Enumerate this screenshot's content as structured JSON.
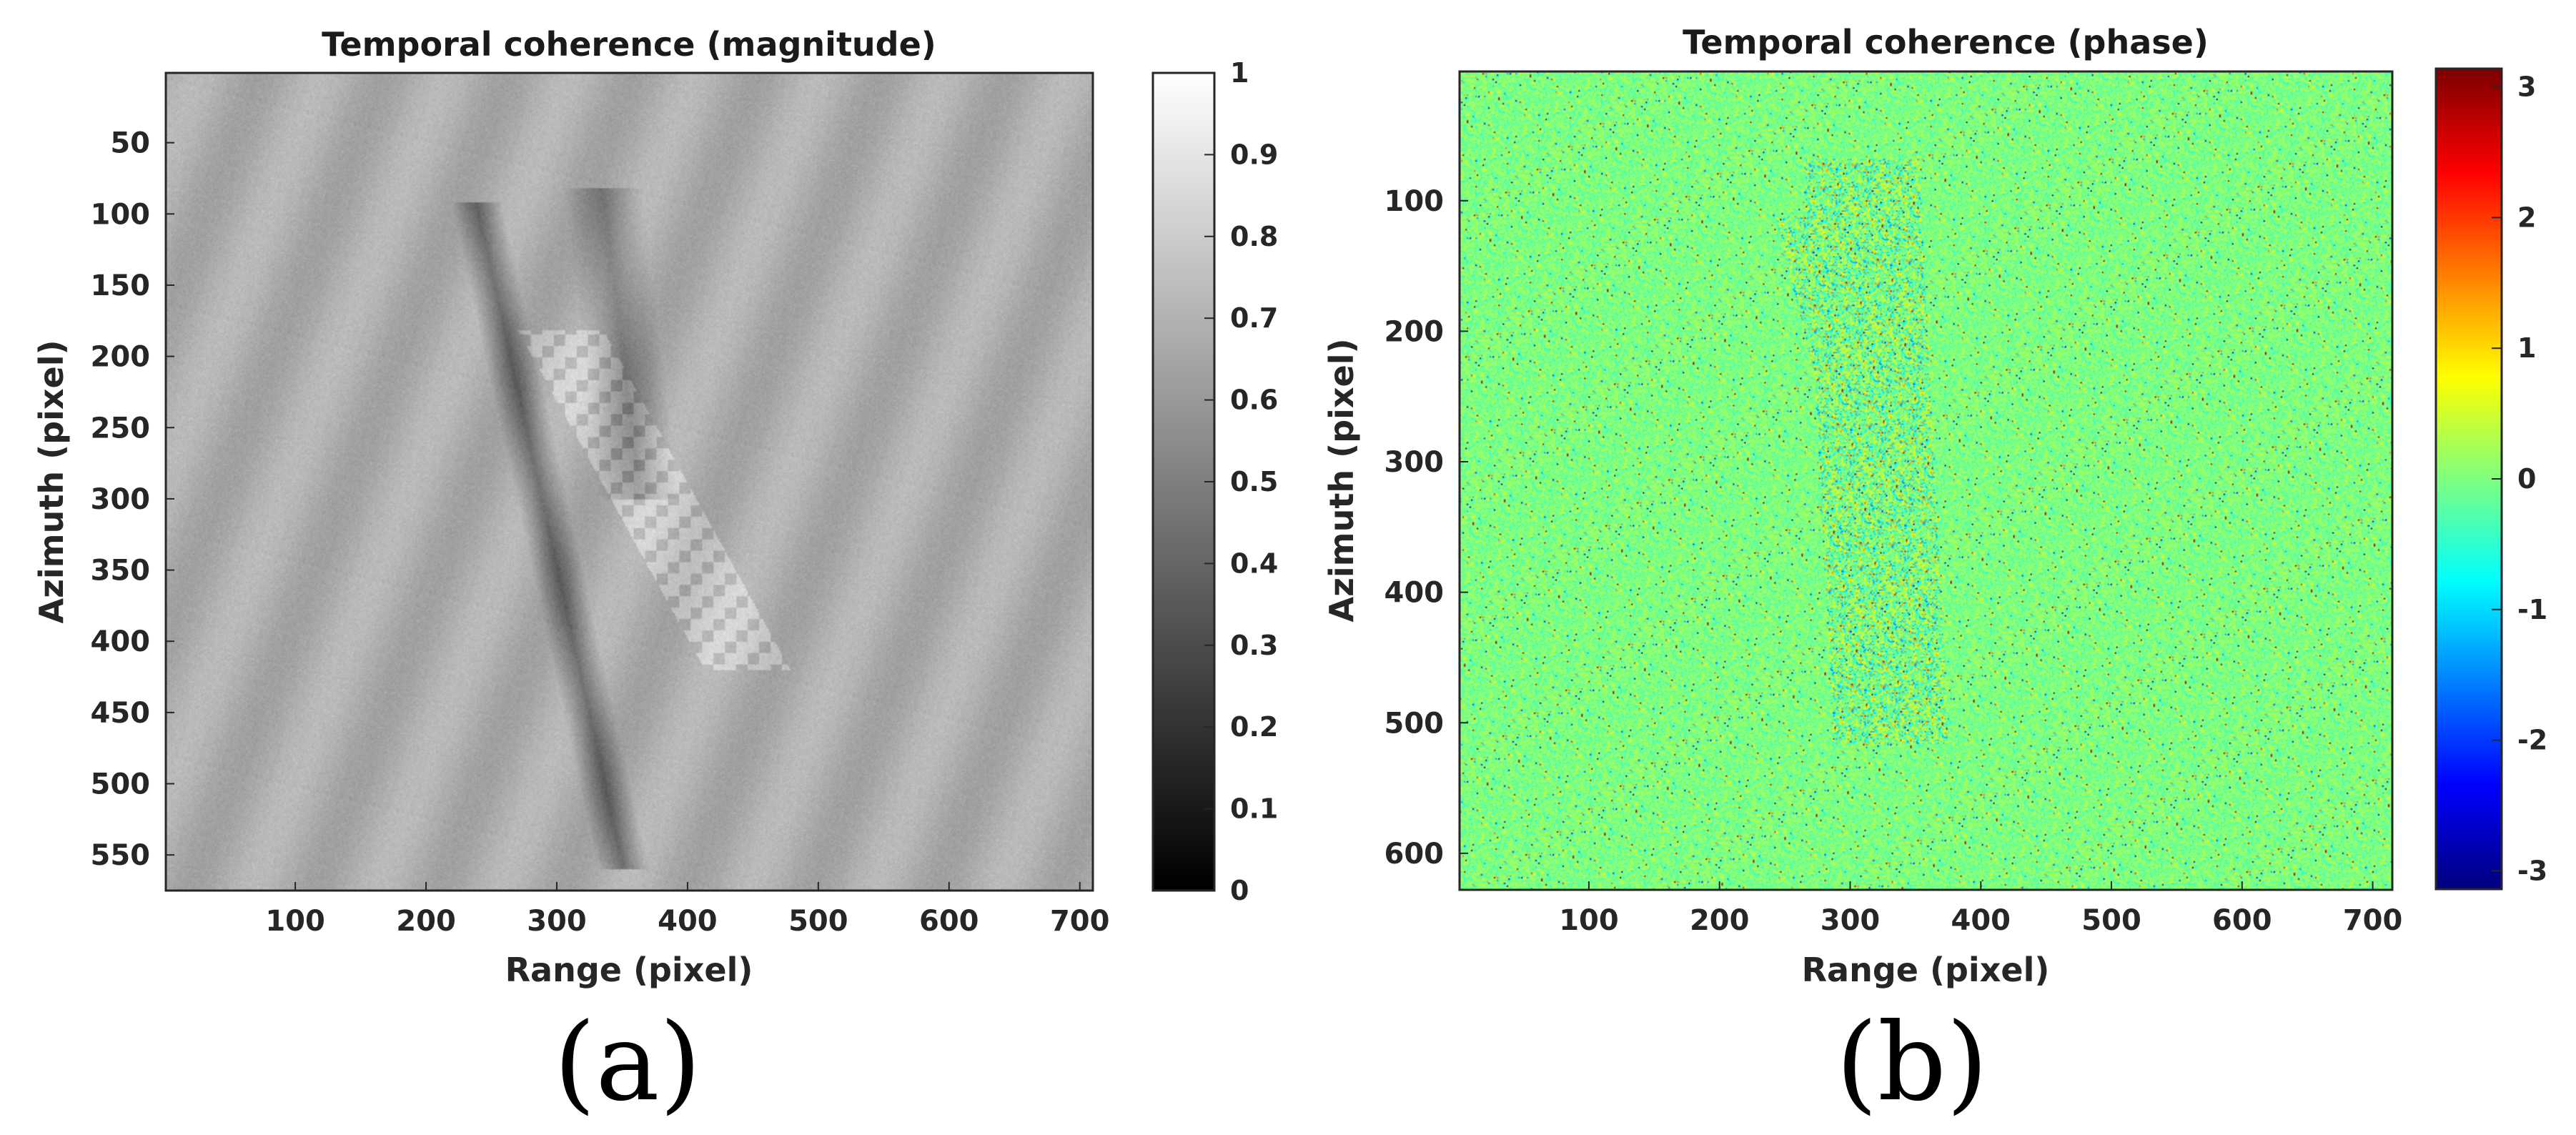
{
  "chart_data": [
    {
      "type": "heatmap",
      "title": "Temporal coherence (magnitude)",
      "xlabel": "Range (pixel)",
      "ylabel": "Azimuth (pixel)",
      "xlim": [
        1,
        710
      ],
      "ylim": [
        1,
        575
      ],
      "x_ticks": [
        100,
        200,
        300,
        400,
        500,
        600,
        700
      ],
      "y_ticks": [
        50,
        100,
        150,
        200,
        250,
        300,
        350,
        400,
        450,
        500,
        550
      ],
      "colormap": "gray",
      "colorbar": {
        "range": [
          0,
          1
        ],
        "ticks": [
          0,
          0.1,
          0.2,
          0.3,
          0.4,
          0.5,
          0.6,
          0.7,
          0.8,
          0.9,
          1
        ],
        "tick_labels": [
          "0",
          "0.1",
          "0.2",
          "0.3",
          "0.4",
          "0.5",
          "0.6",
          "0.7",
          "0.8",
          "0.9",
          "1"
        ]
      },
      "background_level": 0.68,
      "annotation": "(a)"
    },
    {
      "type": "heatmap",
      "title": "Temporal coherence (phase)",
      "xlabel": "Range (pixel)",
      "ylabel": "Azimuth (pixel)",
      "xlim": [
        1,
        715
      ],
      "ylim": [
        1,
        628
      ],
      "x_ticks": [
        100,
        200,
        300,
        400,
        500,
        600,
        700
      ],
      "y_ticks": [
        100,
        200,
        300,
        400,
        500,
        600
      ],
      "colormap": "jet",
      "colorbar": {
        "range": [
          -3.14,
          3.14
        ],
        "ticks": [
          -3,
          -2,
          -1,
          0,
          1,
          2,
          3
        ],
        "tick_labels": [
          "-3",
          "-2",
          "-1",
          "0",
          "1",
          "2",
          "3"
        ]
      },
      "background_level": 0,
      "annotation": "(b)"
    }
  ],
  "colors": {
    "axis": "#262626",
    "background": "#ffffff"
  }
}
